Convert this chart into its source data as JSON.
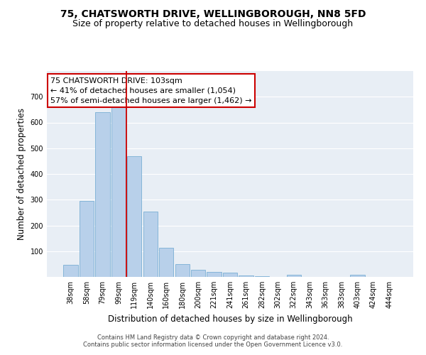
{
  "title": "75, CHATSWORTH DRIVE, WELLINGBOROUGH, NN8 5FD",
  "subtitle": "Size of property relative to detached houses in Wellingborough",
  "xlabel": "Distribution of detached houses by size in Wellingborough",
  "ylabel": "Number of detached properties",
  "categories": [
    "38sqm",
    "58sqm",
    "79sqm",
    "99sqm",
    "119sqm",
    "140sqm",
    "160sqm",
    "180sqm",
    "200sqm",
    "221sqm",
    "241sqm",
    "261sqm",
    "282sqm",
    "302sqm",
    "322sqm",
    "343sqm",
    "363sqm",
    "383sqm",
    "403sqm",
    "424sqm",
    "444sqm"
  ],
  "values": [
    47,
    295,
    640,
    660,
    470,
    253,
    113,
    50,
    27,
    18,
    16,
    5,
    2,
    0,
    8,
    0,
    0,
    0,
    7,
    0,
    0
  ],
  "bar_color": "#b8d0ea",
  "bar_edge_color": "#7aafd4",
  "vline_color": "#cc0000",
  "annotation_text": "75 CHATSWORTH DRIVE: 103sqm\n← 41% of detached houses are smaller (1,054)\n57% of semi-detached houses are larger (1,462) →",
  "annotation_box_color": "#ffffff",
  "annotation_box_edge": "#cc0000",
  "ylim": [
    0,
    800
  ],
  "yticks": [
    100,
    200,
    300,
    400,
    500,
    600,
    700
  ],
  "bg_color": "#e8eef5",
  "footer": "Contains HM Land Registry data © Crown copyright and database right 2024.\nContains public sector information licensed under the Open Government Licence v3.0.",
  "title_fontsize": 10,
  "subtitle_fontsize": 9,
  "annotation_fontsize": 8,
  "tick_fontsize": 7,
  "ylabel_fontsize": 8.5,
  "xlabel_fontsize": 8.5,
  "footer_fontsize": 6
}
